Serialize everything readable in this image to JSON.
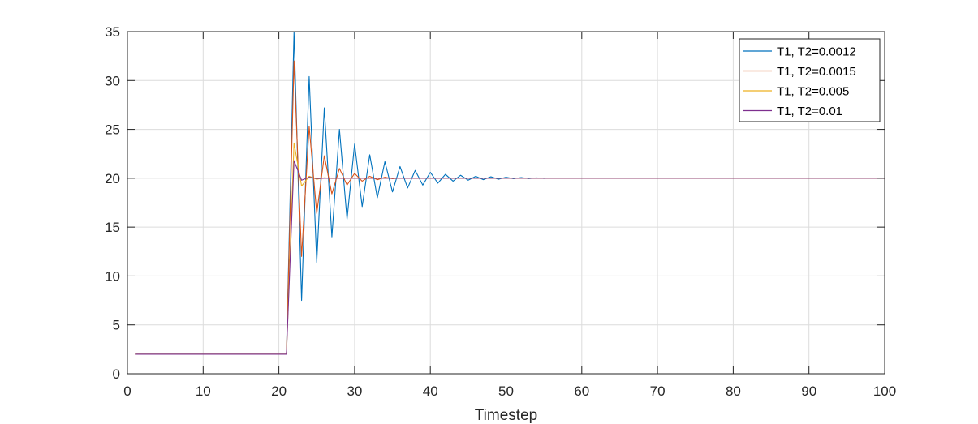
{
  "chart_data": {
    "type": "line",
    "title": "",
    "xlabel": "Timestep",
    "ylabel": "",
    "xlim": [
      0,
      100
    ],
    "ylim": [
      0,
      35
    ],
    "xticks": [
      0,
      10,
      20,
      30,
      40,
      50,
      60,
      70,
      80,
      90,
      100
    ],
    "yticks": [
      0,
      5,
      10,
      15,
      20,
      25,
      30,
      35
    ],
    "grid": true,
    "legend_position": "top-right",
    "series": [
      {
        "name": "T1, T2=0.0012",
        "color": "#0072BD",
        "x": [
          1,
          21,
          22,
          23,
          24,
          25,
          26,
          27,
          28,
          29,
          30,
          31,
          32,
          33,
          34,
          35,
          36,
          37,
          38,
          39,
          40,
          41,
          42,
          43,
          44,
          45,
          46,
          47,
          48,
          49,
          50,
          51,
          52,
          53,
          54,
          55,
          56,
          57,
          58,
          60,
          100
        ],
        "y": [
          2,
          2,
          35,
          7.5,
          30.4,
          11.4,
          27.2,
          14,
          25,
          15.8,
          23.5,
          17.1,
          22.4,
          18,
          21.7,
          18.6,
          21.2,
          19,
          20.8,
          19.3,
          20.6,
          19.5,
          20.4,
          19.7,
          20.3,
          19.8,
          20.2,
          19.85,
          20.15,
          19.9,
          20.1,
          19.95,
          20.07,
          19.96,
          20.04,
          19.98,
          20.02,
          19.99,
          20.01,
          20,
          20
        ]
      },
      {
        "name": "T1, T2=0.0015",
        "color": "#D95319",
        "x": [
          1,
          21,
          22,
          23,
          24,
          25,
          26,
          27,
          28,
          29,
          30,
          31,
          32,
          33,
          34,
          35,
          36,
          38,
          100
        ],
        "y": [
          2,
          2,
          32,
          12,
          25.3,
          16.4,
          22.3,
          18.4,
          21,
          19.3,
          20.5,
          19.7,
          20.2,
          19.85,
          20.1,
          19.95,
          20.03,
          20,
          20
        ]
      },
      {
        "name": "T1, T2=0.005",
        "color": "#EDB120",
        "x": [
          1,
          21,
          22,
          23,
          24,
          25,
          26,
          27,
          28,
          100
        ],
        "y": [
          2,
          2,
          23.6,
          19.2,
          20.2,
          19.9,
          20.05,
          19.98,
          20,
          20
        ]
      },
      {
        "name": "T1, T2=0.01",
        "color": "#7E2F8E",
        "x": [
          1,
          21,
          22,
          23,
          24,
          25,
          26,
          100
        ],
        "y": [
          2,
          2,
          21.8,
          19.8,
          20.1,
          19.97,
          20,
          20
        ]
      }
    ]
  }
}
